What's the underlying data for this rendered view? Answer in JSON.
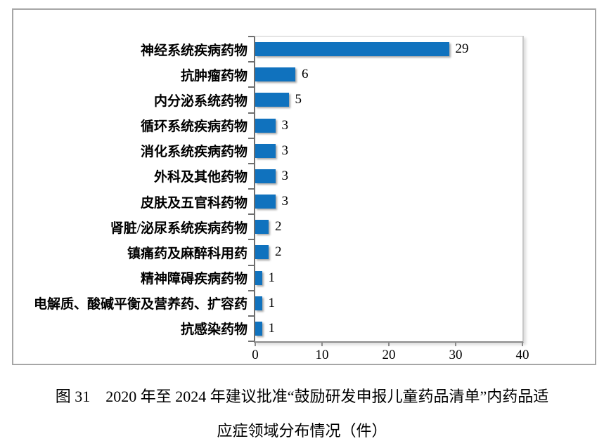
{
  "figure": {
    "caption_line1": "图 31　2020 年至 2024 年建议批准“鼓励研发申报儿童药品清单”内药品适",
    "caption_line2": "应症领域分布情况（件）"
  },
  "chart_data": {
    "type": "bar",
    "orientation": "horizontal",
    "title": "",
    "xlabel": "",
    "ylabel": "",
    "categories": [
      "神经系统疾病药物",
      "抗肿瘤药物",
      "内分泌系统药物",
      "循环系统疾病药物",
      "消化系统疾病药物",
      "外科及其他药物",
      "皮肤及五官科药物",
      "肾脏/泌尿系统疾病药物",
      "镇痛药及麻醉科用药",
      "精神障碍疾病药物",
      "电解质、酸碱平衡及营养药、扩容药",
      "抗感染药物"
    ],
    "values": [
      29,
      6,
      5,
      3,
      3,
      3,
      3,
      2,
      2,
      1,
      1,
      1
    ],
    "xlim": [
      0,
      40
    ],
    "x_ticks": [
      0,
      10,
      20,
      30,
      40
    ],
    "bar_color": "#1072be",
    "grid": false,
    "legend": false,
    "data_labels_shown": true
  }
}
